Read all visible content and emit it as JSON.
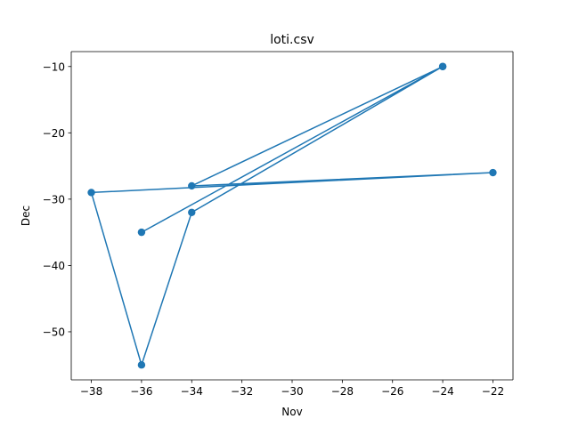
{
  "chart_data": {
    "type": "line",
    "title": "loti.csv",
    "xlabel": "Nov",
    "ylabel": "Dec",
    "xlim": [
      -38.8,
      -21.2
    ],
    "ylim": [
      -57.25,
      -7.75
    ],
    "xticks": [
      -38,
      -36,
      -34,
      -32,
      -30,
      -28,
      -26,
      -24,
      -22
    ],
    "yticks": [
      -10,
      -20,
      -30,
      -40,
      -50
    ],
    "xtick_labels": [
      "−38",
      "−36",
      "−34",
      "−32",
      "−30",
      "−28",
      "−26",
      "−24",
      "−22"
    ],
    "ytick_labels": [
      "−10",
      "−20",
      "−30",
      "−40",
      "−50"
    ],
    "grid": false,
    "series": [
      {
        "color": "#1f77b4",
        "marker": "circle",
        "x": [
          -36,
          -24,
          -34,
          -36,
          -38,
          -22,
          -34,
          -24
        ],
        "y": [
          -35,
          -10,
          -32,
          -55,
          -29,
          -26,
          -28,
          -10
        ]
      }
    ]
  }
}
